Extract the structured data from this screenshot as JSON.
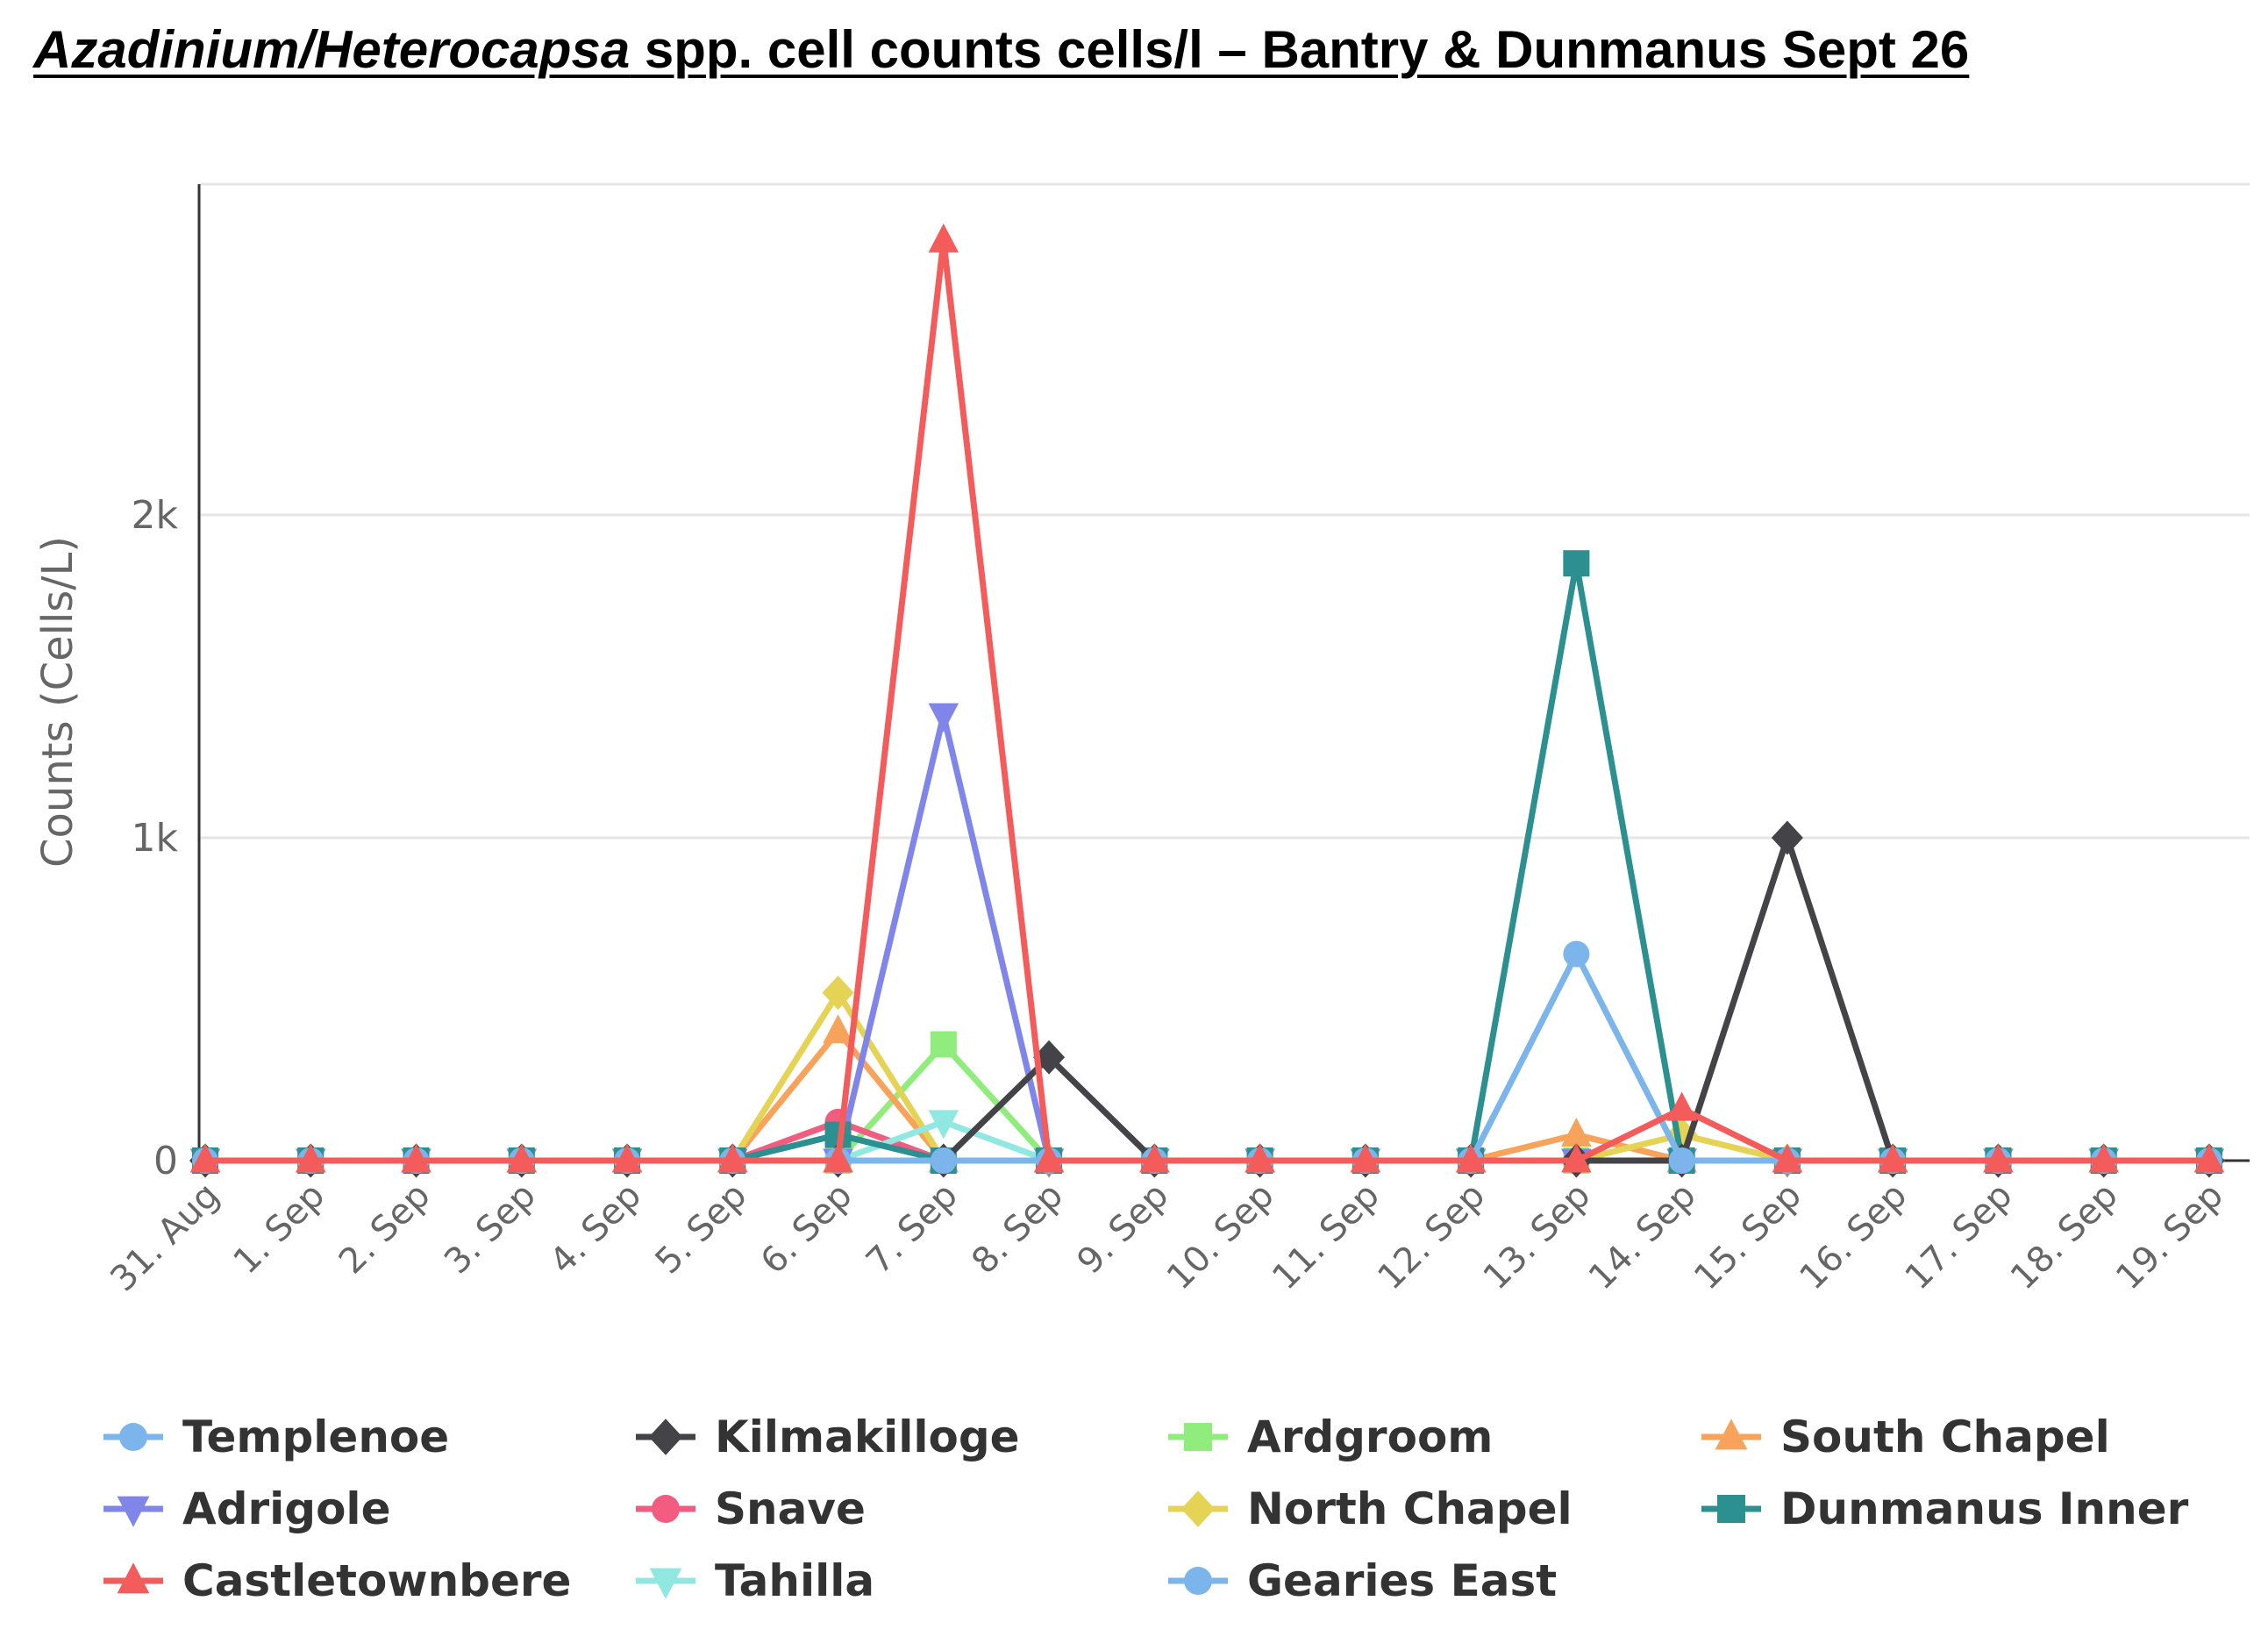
{
  "title": {
    "italic_part": "Azadinium/Heterocapsa",
    "rest": " spp. cell counts cells/l – Bantry & Dunmanus Sept 26"
  },
  "chart_data": {
    "type": "line",
    "title": "Azadinium/Heterocapsa spp. cell counts cells/l – Bantry & Dunmanus Sept 26",
    "xlabel": "",
    "ylabel": "Counts (Cells/L)",
    "categories": [
      "31. Aug",
      "1. Sep",
      "2. Sep",
      "3. Sep",
      "4. Sep",
      "5. Sep",
      "6. Sep",
      "7. Sep",
      "8. Sep",
      "9. Sep",
      "10. Sep",
      "11. Sep",
      "12. Sep",
      "13. Sep",
      "14. Sep",
      "15. Sep",
      "16. Sep",
      "17. Sep",
      "18. Sep",
      "19. Sep"
    ],
    "ylim": [
      0,
      3000
    ],
    "yticks": [
      0,
      1000,
      2000
    ],
    "ytick_labels": [
      "0",
      "1k",
      "2k"
    ],
    "grid": true,
    "legend_position": "bottom",
    "series": [
      {
        "name": "Templenoe",
        "color": "#7cb5ec",
        "marker": "circle",
        "values": [
          0,
          0,
          0,
          0,
          0,
          0,
          0,
          0,
          0,
          0,
          0,
          0,
          0,
          0,
          0,
          0,
          0,
          0,
          0,
          0
        ]
      },
      {
        "name": "Kilmakilloge",
        "color": "#434348",
        "marker": "diamond",
        "values": [
          0,
          0,
          0,
          0,
          0,
          0,
          0,
          0,
          320,
          0,
          0,
          0,
          0,
          0,
          0,
          1000,
          0,
          0,
          0,
          0
        ]
      },
      {
        "name": "Ardgroom",
        "color": "#90ed7d",
        "marker": "square",
        "values": [
          0,
          0,
          0,
          0,
          0,
          0,
          0,
          360,
          0,
          0,
          0,
          0,
          0,
          0,
          0,
          0,
          0,
          0,
          0,
          0
        ]
      },
      {
        "name": "South Chapel",
        "color": "#f7a35c",
        "marker": "triangle",
        "values": [
          0,
          0,
          0,
          0,
          0,
          0,
          400,
          0,
          0,
          0,
          0,
          0,
          0,
          80,
          0,
          0,
          0,
          0,
          0,
          0
        ]
      },
      {
        "name": "Adrigole",
        "color": "#8085e9",
        "marker": "triangle-down",
        "values": [
          0,
          0,
          0,
          0,
          0,
          0,
          0,
          1380,
          0,
          0,
          0,
          0,
          0,
          0,
          0,
          0,
          0,
          0,
          0,
          0
        ]
      },
      {
        "name": "Snave",
        "color": "#f15c80",
        "marker": "circle",
        "values": [
          0,
          0,
          0,
          0,
          0,
          0,
          120,
          0,
          0,
          0,
          0,
          0,
          0,
          0,
          0,
          0,
          0,
          0,
          0,
          0
        ]
      },
      {
        "name": "North Chapel",
        "color": "#e4d354",
        "marker": "diamond",
        "values": [
          0,
          0,
          0,
          0,
          0,
          0,
          520,
          0,
          0,
          0,
          0,
          0,
          0,
          0,
          80,
          0,
          0,
          0,
          0,
          0
        ]
      },
      {
        "name": "Dunmanus Inner",
        "color": "#2b908f",
        "marker": "square",
        "values": [
          0,
          0,
          0,
          0,
          0,
          0,
          80,
          0,
          0,
          0,
          0,
          0,
          0,
          1850,
          0,
          0,
          0,
          0,
          0,
          0
        ]
      },
      {
        "name": "Castletownbere",
        "color": "#f45b5b",
        "marker": "triangle",
        "values": [
          0,
          0,
          0,
          0,
          0,
          0,
          0,
          2850,
          0,
          0,
          0,
          0,
          0,
          0,
          160,
          0,
          0,
          0,
          0,
          0
        ]
      },
      {
        "name": "Tahilla",
        "color": "#91e8e1",
        "marker": "triangle-down",
        "values": [
          0,
          0,
          0,
          0,
          0,
          0,
          0,
          120,
          0,
          0,
          0,
          0,
          0,
          0,
          0,
          0,
          0,
          0,
          0,
          0
        ]
      },
      {
        "name": "Gearies East",
        "color": "#7cb5ec",
        "marker": "circle",
        "values": [
          0,
          0,
          0,
          0,
          0,
          0,
          0,
          0,
          0,
          0,
          0,
          0,
          0,
          640,
          0,
          0,
          0,
          0,
          0,
          0
        ]
      }
    ]
  }
}
